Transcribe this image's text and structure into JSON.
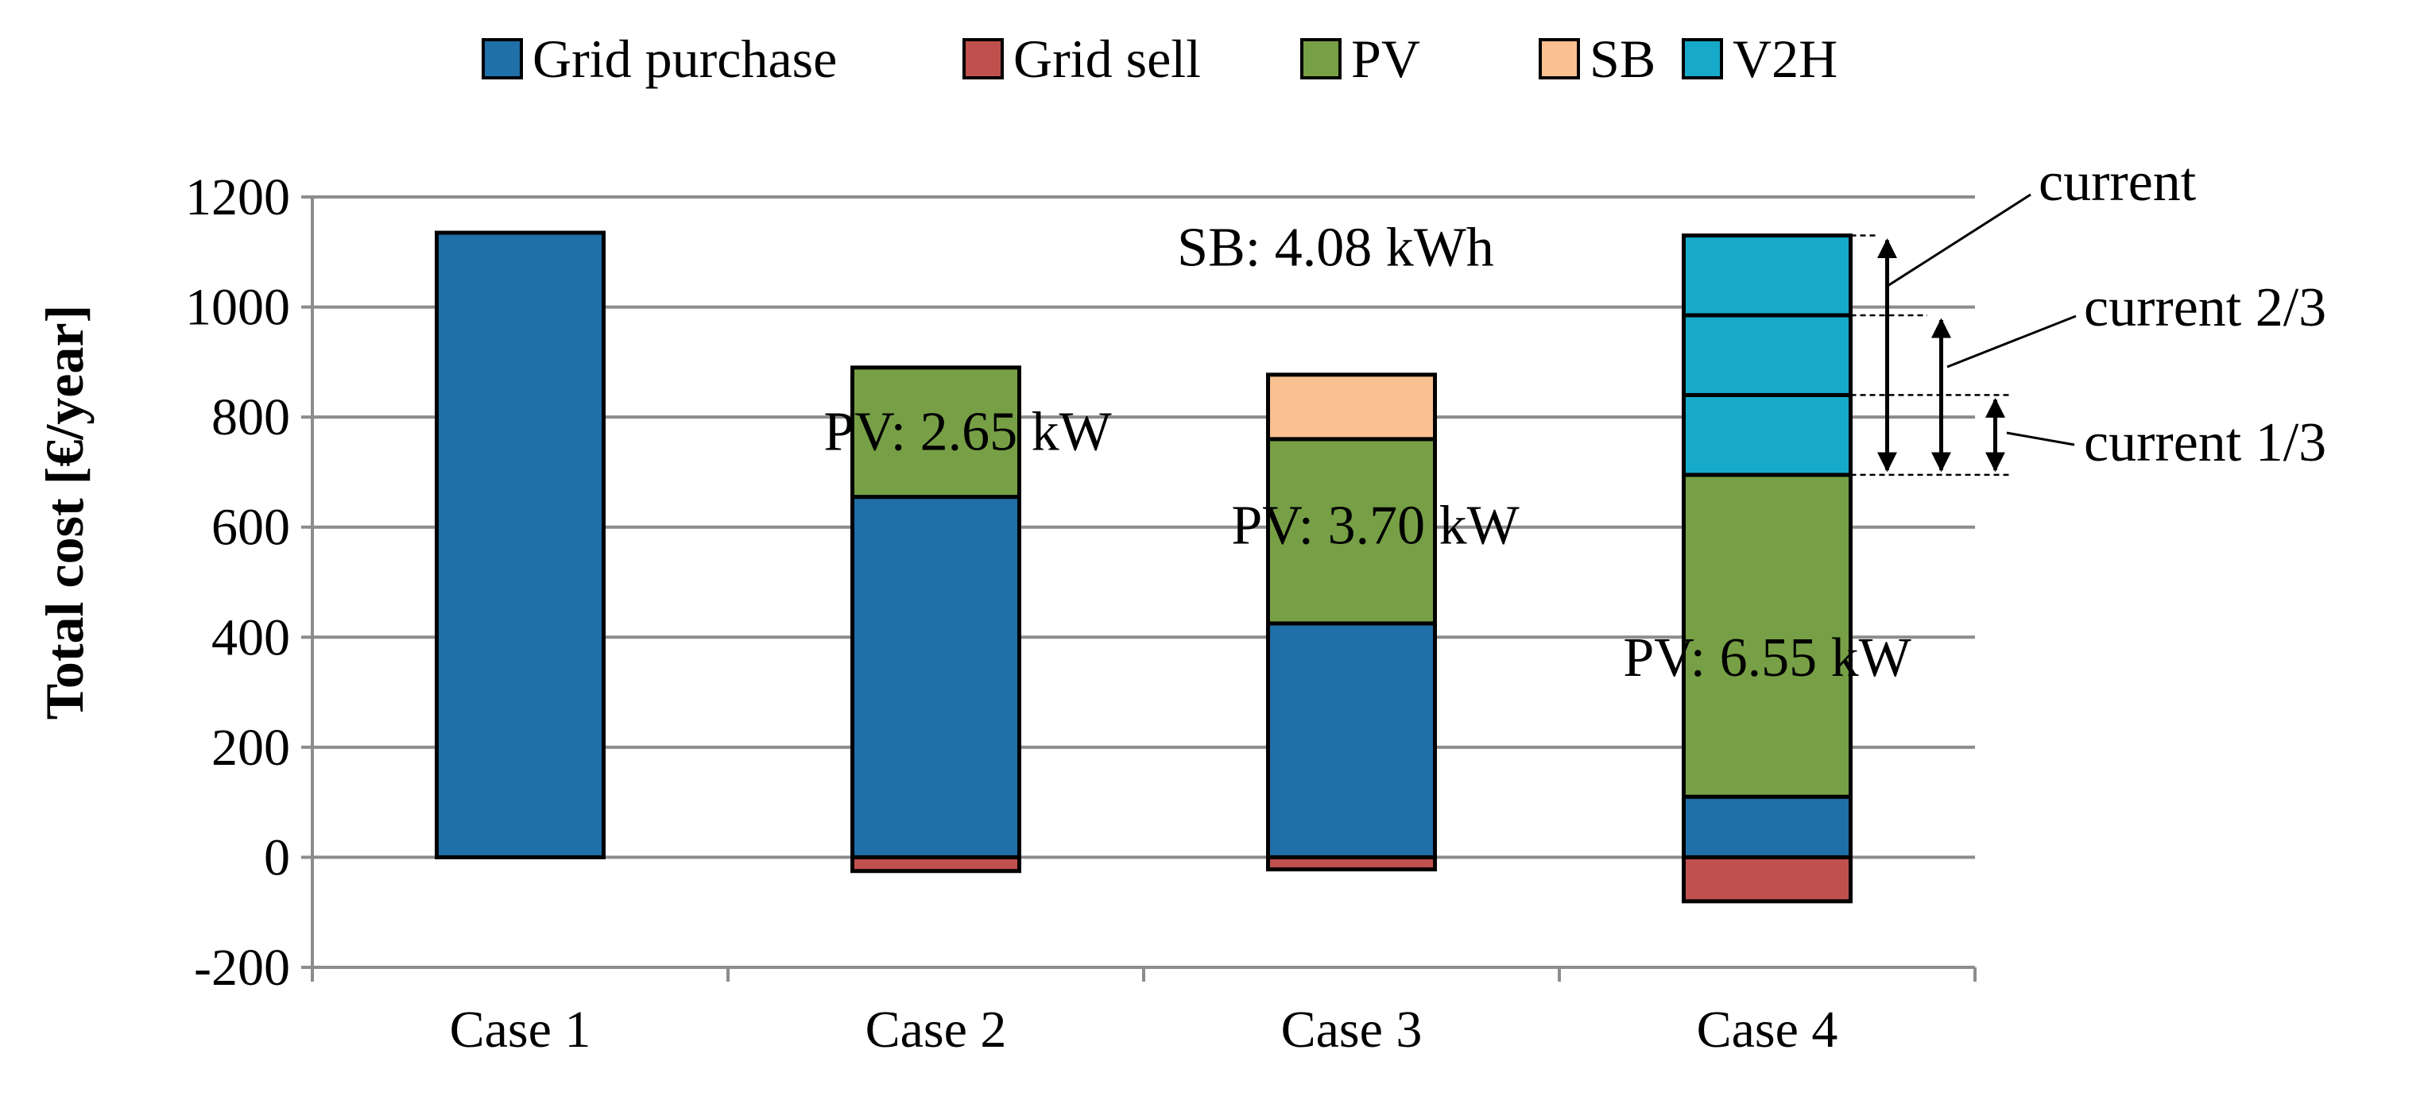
{
  "chart_data": {
    "type": "bar",
    "stacked": true,
    "title": "",
    "xlabel": "",
    "ylabel": "Total cost [€/year]",
    "ylim": [
      -200,
      1200
    ],
    "yticks": [
      -200,
      0,
      200,
      400,
      600,
      800,
      1000,
      1200
    ],
    "grid": true,
    "legend_position": "top",
    "categories": [
      "Case 1",
      "Case 2",
      "Case 3",
      "Case 4"
    ],
    "series": [
      {
        "name": "Grid purchase",
        "color": "#1F6FA8",
        "values": [
          1135,
          655,
          425,
          110
        ]
      },
      {
        "name": "Grid sell",
        "color": "#C0504D",
        "values": [
          0,
          -25,
          -22,
          -80
        ]
      },
      {
        "name": "PV",
        "color": "#77A046",
        "values": [
          0,
          235,
          335,
          585
        ]
      },
      {
        "name": "SB",
        "color": "#FAC090",
        "values": [
          0,
          0,
          117,
          0
        ]
      },
      {
        "name": "V2H",
        "color": "#17A9C9",
        "values": [
          0,
          0,
          0,
          435
        ]
      }
    ],
    "v2h_segments": [
      {
        "label": "current 1/3",
        "from": 695,
        "to": 840
      },
      {
        "label": "current 2/3",
        "from": 695,
        "to": 985
      },
      {
        "label": "current",
        "from": 695,
        "to": 1130
      }
    ],
    "annotations": [
      {
        "text": "PV: 2.65 kW",
        "category": "Case 2",
        "y": 740
      },
      {
        "text": "SB: 4.08 kWh",
        "category": "Case 3",
        "y": 1075
      },
      {
        "text": "PV: 3.70 kW",
        "category": "Case 3",
        "y": 570
      },
      {
        "text": "PV: 6.55 kW",
        "category": "Case 4",
        "y": 330
      }
    ]
  }
}
